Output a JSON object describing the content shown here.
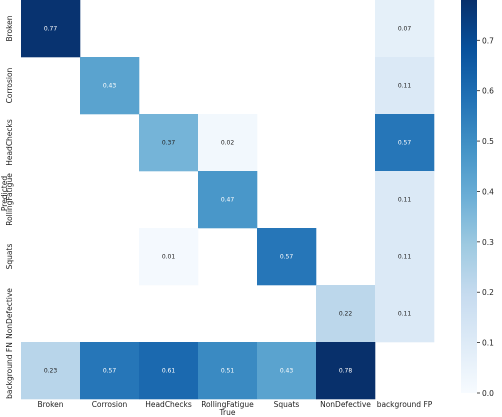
{
  "chart_data": {
    "type": "heatmap",
    "title": "",
    "xlabel": "True",
    "ylabel": "Predicted",
    "x_categories": [
      "Broken",
      "Corrosion",
      "HeadChecks",
      "RollingFatigue",
      "Squats",
      "NonDefective",
      "background FP"
    ],
    "y_categories": [
      "Broken",
      "Corrosion",
      "HeadChecks",
      "RollingFatigue",
      "Squats",
      "NonDefective",
      "background FN"
    ],
    "values": [
      [
        0.77,
        null,
        null,
        null,
        null,
        null,
        0.07
      ],
      [
        null,
        0.43,
        null,
        null,
        null,
        null,
        0.11
      ],
      [
        null,
        null,
        0.37,
        0.02,
        null,
        null,
        0.57
      ],
      [
        null,
        null,
        null,
        0.47,
        null,
        null,
        0.11
      ],
      [
        null,
        null,
        0.01,
        null,
        0.57,
        null,
        0.11
      ],
      [
        null,
        null,
        null,
        null,
        null,
        0.22,
        0.11
      ],
      [
        0.23,
        0.57,
        0.61,
        0.51,
        0.43,
        0.78,
        null
      ]
    ],
    "colorbar": {
      "range": [
        0.0,
        0.78
      ],
      "ticks": [
        0.0,
        0.1,
        0.2,
        0.3,
        0.4,
        0.5,
        0.6,
        0.7
      ],
      "tick_labels": [
        "0.0",
        "0.1",
        "0.2",
        "0.3",
        "0.4",
        "0.5",
        "0.6",
        "0.7"
      ],
      "colormap": "Blues"
    },
    "legend": "none",
    "grid": false
  }
}
